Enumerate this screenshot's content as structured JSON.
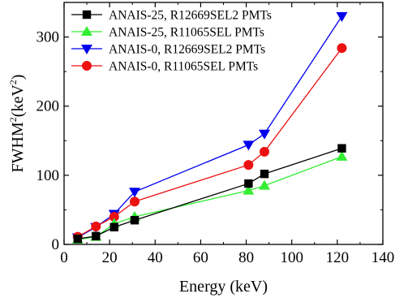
{
  "chart_data": {
    "type": "line",
    "xlabel": "Energy (keV)",
    "ylabel": "FWHM",
    "ylabel_sup": "2",
    "ylabel_unit": "(keV",
    "ylabel_unit_sup": "2",
    "ylabel_close": ")",
    "xlim": [
      0,
      140
    ],
    "ylim": [
      0,
      350
    ],
    "xticks": [
      0,
      20,
      40,
      60,
      80,
      100,
      120,
      140
    ],
    "yticks": [
      0,
      100,
      200,
      300
    ],
    "xtick_labels": [
      "0",
      "20",
      "40",
      "60",
      "80",
      "100",
      "120",
      "140"
    ],
    "ytick_labels": [
      "0",
      "100",
      "200",
      "300"
    ],
    "grid": false,
    "legend_position": "top-left",
    "x": [
      6,
      14,
      22,
      31,
      81,
      88,
      122
    ],
    "series": [
      {
        "name": "ANAIS-25, R12669SEL2 PMTs",
        "color": "#000000",
        "marker": "square",
        "values": [
          8,
          12,
          25,
          35,
          88,
          102,
          139
        ]
      },
      {
        "name": "ANAIS-25, R11065SEL PMTs",
        "color": "#33ee33",
        "marker": "triangle-up",
        "values": [
          7,
          11,
          30,
          40,
          78,
          85,
          127
        ]
      },
      {
        "name": "ANAIS-0, R12669SEL2 PMTs",
        "color": "#0000ee",
        "marker": "triangle-down",
        "values": [
          10,
          25,
          44,
          76,
          144,
          160,
          330
        ]
      },
      {
        "name": "ANAIS-0, R11065SEL PMTs",
        "color": "#ee1111",
        "marker": "circle",
        "values": [
          11,
          26,
          40,
          62,
          115,
          134,
          284
        ]
      }
    ]
  }
}
